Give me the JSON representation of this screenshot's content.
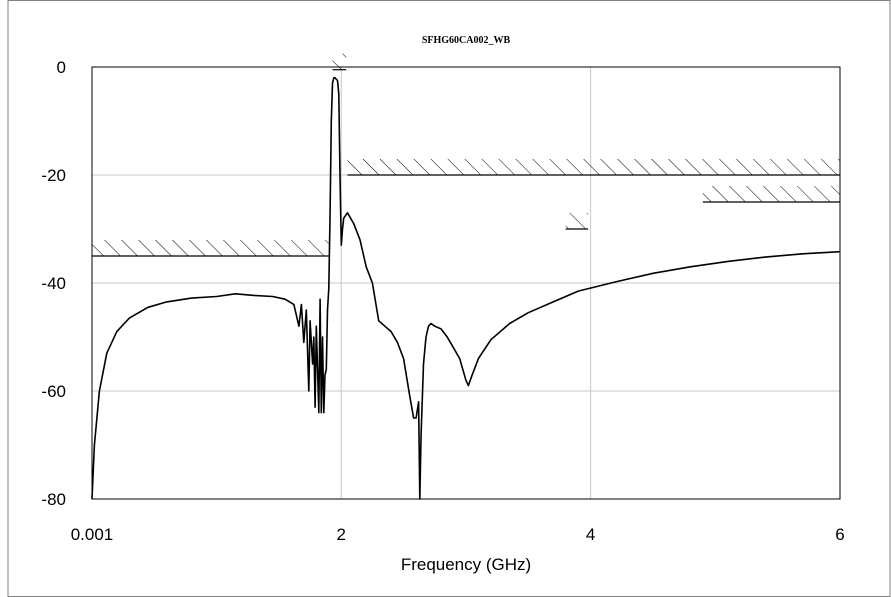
{
  "chart_data": {
    "type": "line",
    "title": "SFHG60CA002_WB",
    "xlabel": "Frequency (GHz)",
    "ylabel": "",
    "xlim": [
      0.001,
      6
    ],
    "ylim": [
      -80,
      0
    ],
    "x_ticks": [
      {
        "value": 0.001,
        "label": "0.001"
      },
      {
        "value": 2,
        "label": "2"
      },
      {
        "value": 4,
        "label": "4"
      },
      {
        "value": 6,
        "label": "6"
      }
    ],
    "y_ticks": [
      {
        "value": 0,
        "label": "0"
      },
      {
        "value": -20,
        "label": "-20"
      },
      {
        "value": -40,
        "label": "-40"
      },
      {
        "value": -60,
        "label": "-60"
      },
      {
        "value": -80,
        "label": "-80"
      }
    ],
    "grid": true,
    "legend": "none",
    "colors": {
      "line": "#000000",
      "grid": "#c8c8c8",
      "hatch": "#000000",
      "frame": "#808080"
    },
    "series": [
      {
        "x": [
          0.001,
          0.02,
          0.06,
          0.12,
          0.2,
          0.3,
          0.45,
          0.6,
          0.8,
          1.0,
          1.15,
          1.3,
          1.45,
          1.55,
          1.62,
          1.66,
          1.68,
          1.7,
          1.72,
          1.74,
          1.75,
          1.77,
          1.78,
          1.79,
          1.8,
          1.82,
          1.83,
          1.84,
          1.85,
          1.86,
          1.87,
          1.88,
          1.89,
          1.9,
          1.91,
          1.92,
          1.93,
          1.94,
          1.95,
          1.97,
          1.98,
          1.99,
          2.0,
          2.01,
          2.02,
          2.05,
          2.1,
          2.15,
          2.2,
          2.25,
          2.3,
          2.35,
          2.4,
          2.45,
          2.5,
          2.55,
          2.58,
          2.6,
          2.62,
          2.63,
          2.64,
          2.66,
          2.68,
          2.7,
          2.72,
          2.75,
          2.8,
          2.85,
          2.9,
          2.95,
          3.0,
          3.02,
          3.05,
          3.1,
          3.2,
          3.35,
          3.5,
          3.7,
          3.9,
          4.2,
          4.5,
          4.8,
          5.1,
          5.4,
          5.7,
          6.0
        ],
        "y": [
          -80,
          -70,
          -60,
          -53,
          -49,
          -46.5,
          -44.5,
          -43.5,
          -42.8,
          -42.5,
          -42,
          -42.3,
          -42.5,
          -43,
          -44,
          -48,
          -44,
          -51,
          -45,
          -60,
          -47,
          -55,
          -50,
          -63,
          -48,
          -64,
          -43,
          -64,
          -50,
          -64,
          -57,
          -56,
          -45,
          -41,
          -28,
          -10,
          -3,
          -2,
          -2,
          -2.5,
          -5,
          -20,
          -33,
          -30,
          -28,
          -27,
          -29,
          -32,
          -37,
          -40,
          -47,
          -48,
          -49,
          -51,
          -54,
          -61,
          -65,
          -65,
          -62,
          -80,
          -68,
          -55,
          -50,
          -48,
          -47.5,
          -48,
          -48.5,
          -50,
          -52,
          -54,
          -58,
          -59,
          -57,
          -54,
          -50.5,
          -47.5,
          -45.5,
          -43.5,
          -41.5,
          -39.8,
          -38.2,
          -37.0,
          -36.0,
          -35.2,
          -34.6,
          -34.2
        ]
      }
    ],
    "mask_regions": [
      {
        "x": [
          0.001,
          1.9
        ],
        "y": -35
      },
      {
        "x": [
          2.05,
          6.0
        ],
        "y": -20
      },
      {
        "x": [
          4.9,
          6.0
        ],
        "y": -25
      },
      {
        "x": [
          3.8,
          3.98
        ],
        "y": -30
      },
      {
        "x": [
          1.93,
          2.04
        ],
        "y": -0.5
      }
    ]
  }
}
